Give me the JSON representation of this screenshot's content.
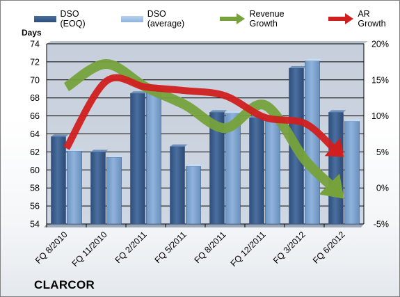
{
  "legend": {
    "dso_eoq": "DSO (EOQ)",
    "dso_average": "DSO (average)",
    "revenue_growth": "Revenue Growth",
    "ar_growth": "AR Growth"
  },
  "brand": "CLARCOR",
  "colors": {
    "dso_eoq": "#4a6f9f",
    "dso_average": "#8fb3dc",
    "revenue_growth": "#76a23b",
    "ar_growth": "#d11f1f",
    "plot_background": "#cfd7e2",
    "gridline": "#000000"
  },
  "chart_data": {
    "type": "bar",
    "title": "",
    "categories": [
      "FQ 8/2010",
      "FQ 11/2010",
      "FQ 2/2011",
      "FQ 5/2011",
      "FQ 8/2011",
      "FQ 12/2011",
      "FQ 3/2012",
      "FQ 6/2012"
    ],
    "series": [
      {
        "name": "DSO (EOQ)",
        "type": "bar",
        "axis": "left",
        "values": [
          63.7,
          62.0,
          68.5,
          62.6,
          66.4,
          65.8,
          71.3,
          66.4
        ]
      },
      {
        "name": "DSO (average)",
        "type": "bar",
        "axis": "left",
        "values": [
          62.1,
          61.4,
          68.9,
          60.4,
          66.3,
          65.7,
          72.1,
          65.4
        ]
      },
      {
        "name": "Revenue Growth",
        "type": "line",
        "axis": "right",
        "unit": "%",
        "values": [
          14.0,
          17.2,
          14.0,
          11.5,
          8.3,
          11.5,
          4.0,
          -1.5
        ]
      },
      {
        "name": "AR Growth",
        "type": "line",
        "axis": "right",
        "unit": "%",
        "values": [
          5.5,
          14.8,
          14.0,
          13.5,
          12.8,
          9.8,
          9.0,
          4.3
        ]
      }
    ],
    "ylabel_left": "Days",
    "ylim_left": [
      54,
      74
    ],
    "yticks_left": [
      "54",
      "56",
      "58",
      "60",
      "62",
      "64",
      "66",
      "68",
      "70",
      "72",
      "74"
    ],
    "ylim_right": [
      -5,
      20
    ],
    "yticks_right": [
      "-5%",
      "0%",
      "5%",
      "10%",
      "15%",
      "20%"
    ],
    "grid": true,
    "legend_position": "top"
  }
}
